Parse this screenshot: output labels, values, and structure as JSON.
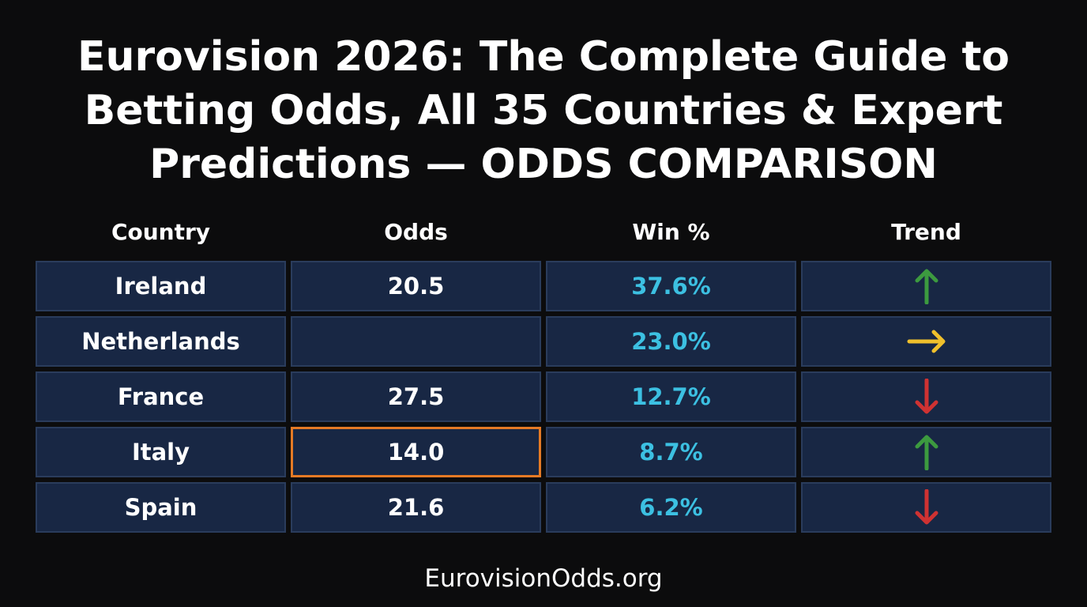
{
  "header": {
    "title": [
      "Eurovision 2026: The Complete Guide to",
      "Betting Odds, All 35 Countries & Expert",
      "Predictions — ODDS COMPARISON"
    ]
  },
  "table": {
    "columns": [
      "Country",
      "Odds",
      "Win %",
      "Trend"
    ],
    "rows": [
      [
        "Ireland",
        "20.5",
        "37.6%"
      ],
      [
        "Netherlands",
        null,
        "23.0%"
      ],
      [
        "France",
        "27.5",
        "12.7%"
      ],
      [
        "Italy",
        "14.0",
        "8.7%"
      ],
      [
        "Spain",
        "21.6",
        "6.2%"
      ]
    ]
  },
  "footer": {
    "text": "EurovisionOdds.org"
  }
}
